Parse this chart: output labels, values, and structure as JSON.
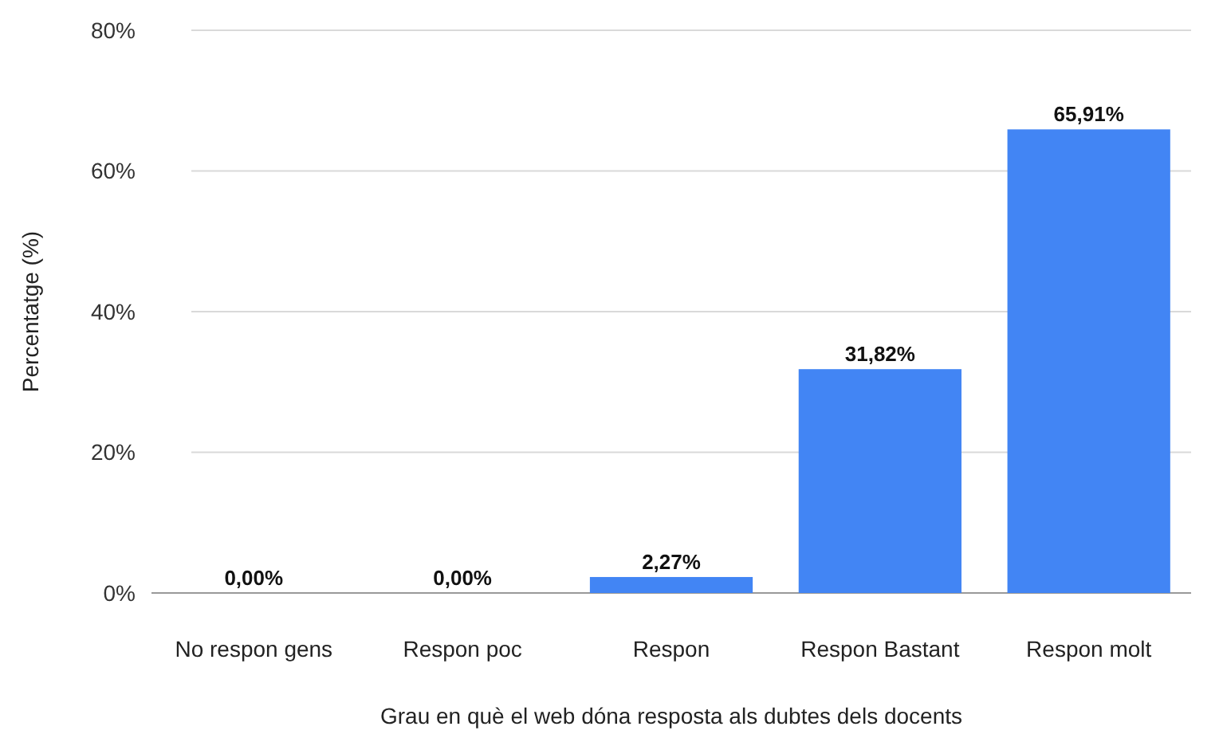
{
  "chart_data": {
    "type": "bar",
    "xlabel": "Grau en què el web dóna resposta als dubtes dels docents",
    "ylabel": "Percentatge (%)",
    "categories": [
      "No respon gens",
      "Respon poc",
      "Respon",
      "Respon Bastant",
      "Respon molt"
    ],
    "values": [
      0,
      0,
      2.27,
      31.82,
      65.91
    ],
    "value_labels": [
      "0,00%",
      "0,00%",
      "2,27%",
      "31,82%",
      "65,91%"
    ],
    "color": "#4285f4",
    "ylim": [
      0,
      80
    ],
    "yticks": [
      {
        "value": 0,
        "label": "0%"
      },
      {
        "value": 20,
        "label": "20%"
      },
      {
        "value": 40,
        "label": "40%"
      },
      {
        "value": 60,
        "label": "60%"
      },
      {
        "value": 80,
        "label": "80%"
      }
    ],
    "grid": "y"
  }
}
